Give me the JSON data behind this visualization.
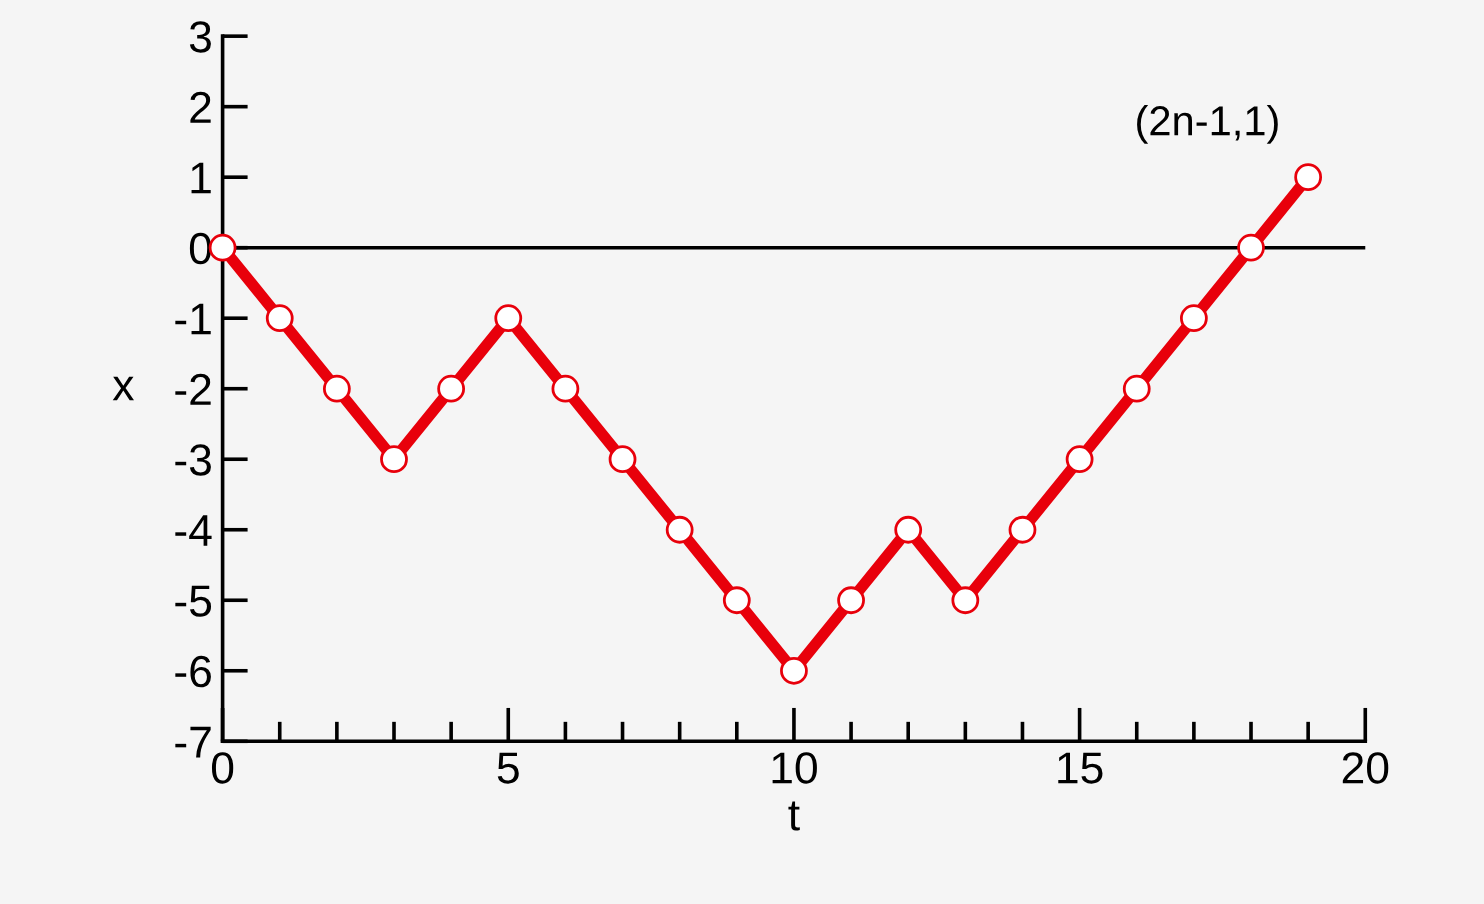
{
  "chart_data": {
    "type": "line",
    "xlabel": "t",
    "ylabel": "x",
    "x": [
      0,
      1,
      2,
      3,
      4,
      5,
      6,
      7,
      8,
      9,
      10,
      11,
      12,
      13,
      14,
      15,
      16,
      17,
      18,
      19
    ],
    "series": [
      {
        "color": "#e8000b",
        "values": [
          0,
          -1,
          -2,
          -3,
          -2,
          -1,
          -2,
          -3,
          -4,
          -5,
          -6,
          -5,
          -4,
          -5,
          -4,
          -3,
          -2,
          -1,
          0,
          1
        ]
      }
    ],
    "marker": "circle",
    "line_style": "solid",
    "grid": false,
    "legend": false,
    "xlim": [
      0,
      20
    ],
    "ylim": [
      -7,
      3
    ],
    "xticks": [
      0,
      {
        "value": 1,
        "label": null
      },
      {
        "value": 2,
        "label": null
      },
      {
        "value": 3,
        "label": null
      },
      {
        "value": 4,
        "label": null
      },
      5,
      {
        "value": 6,
        "label": null
      },
      {
        "value": 7,
        "label": null
      },
      {
        "value": 8,
        "label": null
      },
      {
        "value": 9,
        "label": null
      },
      10,
      {
        "value": 11,
        "label": null
      },
      {
        "value": 12,
        "label": null
      },
      {
        "value": 13,
        "label": null
      },
      {
        "value": 14,
        "label": null
      },
      15,
      {
        "value": 16,
        "label": null
      },
      {
        "value": 17,
        "label": null
      },
      {
        "value": 18,
        "label": null
      },
      {
        "value": 19,
        "label": null
      },
      20
    ],
    "yticks": [
      -7,
      -6,
      -5,
      -4,
      -3,
      -2,
      -1,
      0,
      1,
      2,
      3
    ],
    "ref_lines": [
      {
        "axis": "y",
        "value": 0,
        "color": "#000000",
        "line_style": "solid"
      }
    ],
    "annotations": [
      {
        "text": "(2n-1,1)",
        "x": 19,
        "y": 1
      }
    ]
  }
}
